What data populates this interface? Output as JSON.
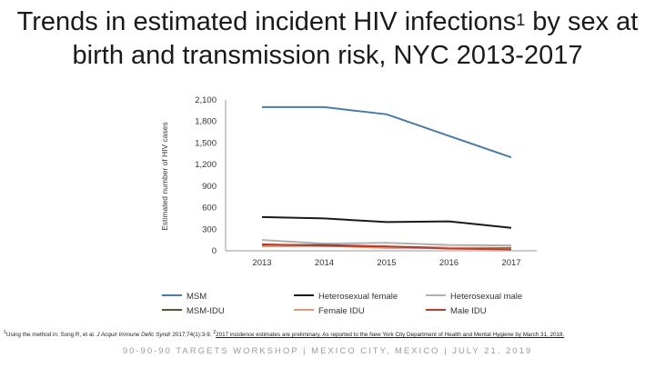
{
  "title": {
    "line1_prefix": "Trends in estimated incident HIV infections",
    "line1_sup": "1",
    "line1_suffix": " by sex at",
    "line2": "birth and transmission risk, NYC 2013-2017"
  },
  "chart_data": {
    "type": "line",
    "ylabel": "Estimated number of HIV cases",
    "xlabel": "",
    "x": [
      "2013",
      "2014",
      "2015",
      "2016",
      "2017"
    ],
    "ylim": [
      0,
      2100
    ],
    "yticks": [
      0,
      300,
      600,
      900,
      1200,
      1500,
      1800,
      2100
    ],
    "ytick_labels": [
      "0",
      "300",
      "600",
      "900",
      "1,200",
      "1,500",
      "1,800",
      "2,100"
    ],
    "series": [
      {
        "name": "MSM",
        "color": "#4a7ba7",
        "values": [
          2000,
          2000,
          1900,
          1600,
          1300
        ]
      },
      {
        "name": "Heterosexual female",
        "color": "#1a1a1a",
        "values": [
          470,
          450,
          400,
          410,
          320
        ]
      },
      {
        "name": "Heterosexual male",
        "color": "#b0b0b0",
        "values": [
          150,
          100,
          110,
          80,
          75
        ]
      },
      {
        "name": "MSM-IDU",
        "color": "#4a5a2a",
        "values": [
          80,
          80,
          60,
          40,
          40
        ]
      },
      {
        "name": "Female IDU",
        "color": "#e39a7a",
        "values": [
          60,
          70,
          40,
          40,
          30
        ]
      },
      {
        "name": "Male IDU",
        "color": "#c0392b",
        "values": [
          90,
          70,
          60,
          30,
          20
        ]
      }
    ],
    "legend_position": "bottom"
  },
  "footnote": {
    "marker1": "1",
    "text1": "Using the method in: Song R, et al. ",
    "journal": "J Acquir Immune Defic Syndr",
    "text2": " 2017;74(1):3-9. ",
    "marker2": "2",
    "text3": "2017 incidence estimates are preliminary. As reported to the New York City Department of Health and Mental Hygiene by March 31, 2018."
  },
  "banner": "90-90-90 TARGETS WORKSHOP  |  MEXICO CITY, MEXICO  |  JULY 21, 2019"
}
